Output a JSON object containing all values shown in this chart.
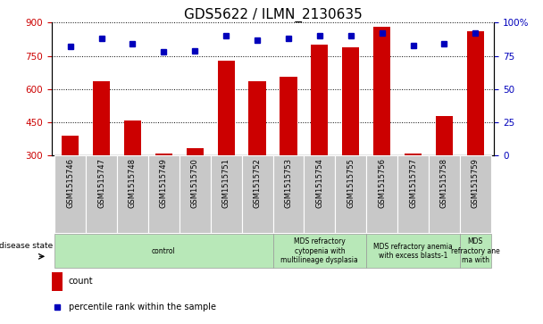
{
  "title": "GDS5622 / ILMN_2130635",
  "samples": [
    "GSM1515746",
    "GSM1515747",
    "GSM1515748",
    "GSM1515749",
    "GSM1515750",
    "GSM1515751",
    "GSM1515752",
    "GSM1515753",
    "GSM1515754",
    "GSM1515755",
    "GSM1515756",
    "GSM1515757",
    "GSM1515758",
    "GSM1515759"
  ],
  "bar_values": [
    390,
    635,
    460,
    310,
    335,
    730,
    635,
    655,
    800,
    790,
    880,
    310,
    480,
    860
  ],
  "dot_values": [
    82,
    88,
    84,
    78,
    79,
    90,
    87,
    88,
    90,
    90,
    92,
    83,
    84,
    92
  ],
  "ylim_left": [
    300,
    900
  ],
  "ylim_right": [
    0,
    100
  ],
  "yticks_left": [
    300,
    450,
    600,
    750,
    900
  ],
  "yticks_right": [
    0,
    25,
    50,
    75,
    100
  ],
  "bar_color": "#cc0000",
  "dot_color": "#0000bb",
  "disease_groups": [
    {
      "label": "control",
      "start": 0,
      "end": 7
    },
    {
      "label": "MDS refractory\ncytopenia with\nmultilineage dysplasia",
      "start": 7,
      "end": 10
    },
    {
      "label": "MDS refractory anemia\nwith excess blasts-1",
      "start": 10,
      "end": 13
    },
    {
      "label": "MDS\nrefractory ane\nma with",
      "start": 13,
      "end": 14
    }
  ],
  "disease_state_label": "disease state",
  "legend_count_label": "count",
  "legend_pct_label": "percentile rank within the sample",
  "title_fontsize": 11,
  "label_bg_color": "#c8c8c8",
  "disease_bg_color": "#b8e8b8",
  "bar_width": 0.55
}
